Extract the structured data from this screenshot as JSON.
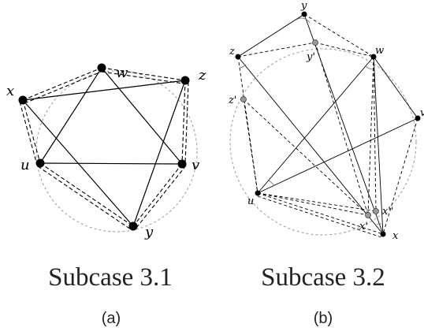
{
  "panel_a": {
    "caption": "Subcase 3.1",
    "sublabel": "(a)",
    "vertices": {
      "x": "x",
      "w": "w",
      "z": "z",
      "u": "u",
      "v": "v",
      "y": "y"
    }
  },
  "panel_b": {
    "caption": "Subcase 3.2",
    "sublabel": "(b)",
    "vertices": {
      "y": "y",
      "z": "z",
      "w": "w",
      "y_prime": "y'",
      "z_prime": "z'",
      "v": "v",
      "u": "u",
      "x": "x",
      "x_prime": "x'",
      "x_double_prime": "x''"
    }
  }
}
